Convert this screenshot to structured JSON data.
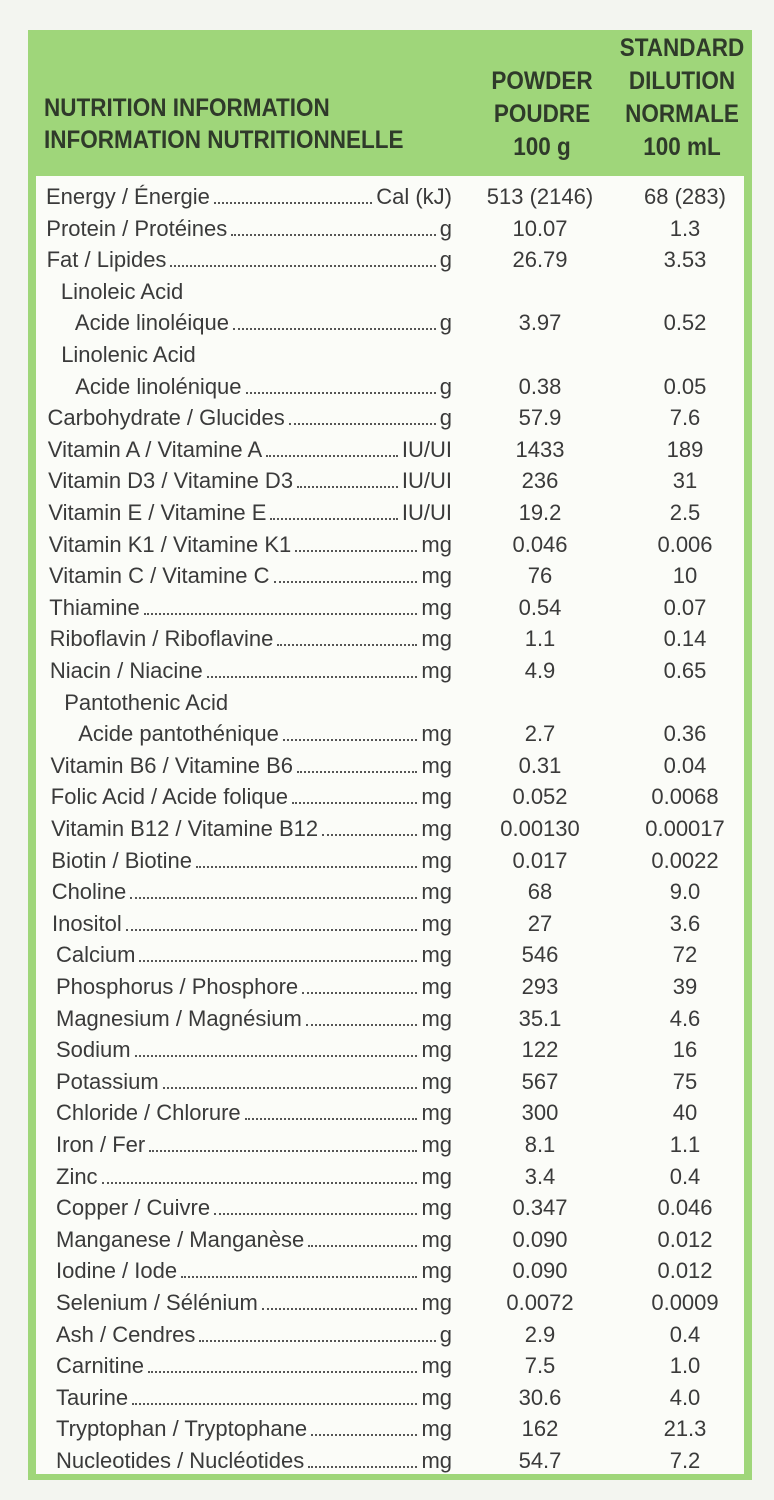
{
  "header": {
    "title": [
      "NUTRITION INFORMATION",
      "INFORMATION NUTRITIONNELLE"
    ],
    "columns": [
      [
        "POWDER",
        "POUDRE",
        "100 g"
      ],
      [
        "STANDARD",
        "DILUTION",
        "NORMALE",
        "100 mL"
      ]
    ]
  },
  "rows": [
    {
      "name": "Energy / Énergie",
      "unit": "Cal (kJ)",
      "powder": "513 (2146)",
      "standard": "68 (283)"
    },
    {
      "name": "Protein / Protéines",
      "unit": "g",
      "powder": "10.07",
      "standard": "1.3"
    },
    {
      "name": "Fat / Lipides",
      "unit": "g",
      "powder": "26.79",
      "standard": "3.53"
    },
    {
      "name": "Linoleic Acid",
      "subname": "Acide linoléique",
      "unit": "g",
      "powder": "3.97",
      "standard": "0.52"
    },
    {
      "name": "Linolenic Acid",
      "subname": "Acide linolénique",
      "unit": "g",
      "powder": "0.38",
      "standard": "0.05"
    },
    {
      "name": "Carbohydrate / Glucides",
      "unit": "g",
      "powder": "57.9",
      "standard": "7.6"
    },
    {
      "name": "Vitamin A / Vitamine A",
      "unit": "IU/UI",
      "powder": "1433",
      "standard": "189"
    },
    {
      "name": "Vitamin D3 / Vitamine D3",
      "unit": "IU/UI",
      "powder": "236",
      "standard": "31"
    },
    {
      "name": "Vitamin E / Vitamine E",
      "unit": "IU/UI",
      "powder": "19.2",
      "standard": "2.5"
    },
    {
      "name": "Vitamin K1 / Vitamine K1",
      "unit": "mg",
      "powder": "0.046",
      "standard": "0.006"
    },
    {
      "name": "Vitamin C / Vitamine C",
      "unit": "mg",
      "powder": "76",
      "standard": "10"
    },
    {
      "name": "Thiamine",
      "unit": "mg",
      "powder": "0.54",
      "standard": "0.07"
    },
    {
      "name": "Riboflavin / Riboflavine",
      "unit": "mg",
      "powder": "1.1",
      "standard": "0.14"
    },
    {
      "name": "Niacin / Niacine",
      "unit": "mg",
      "powder": "4.9",
      "standard": "0.65"
    },
    {
      "name": "Pantothenic Acid",
      "subname": "Acide pantothénique",
      "unit": "mg",
      "powder": "2.7",
      "standard": "0.36"
    },
    {
      "name": "Vitamin B6 / Vitamine B6",
      "unit": "mg",
      "powder": "0.31",
      "standard": "0.04"
    },
    {
      "name": "Folic Acid / Acide folique",
      "unit": "mg",
      "powder": "0.052",
      "standard": "0.0068"
    },
    {
      "name": "Vitamin B12 / Vitamine B12",
      "unit": "mg",
      "powder": "0.00130",
      "standard": "0.00017"
    },
    {
      "name": "Biotin / Biotine",
      "unit": "mg",
      "powder": "0.017",
      "standard": "0.0022"
    },
    {
      "name": "Choline",
      "unit": "mg",
      "powder": "68",
      "standard": "9.0"
    },
    {
      "name": "Inositol",
      "unit": "mg",
      "powder": "27",
      "standard": "3.6"
    },
    {
      "name": "Calcium",
      "unit": "mg",
      "powder": "546",
      "standard": "72"
    },
    {
      "name": "Phosphorus / Phosphore",
      "unit": "mg",
      "powder": "293",
      "standard": "39"
    },
    {
      "name": "Magnesium / Magnésium",
      "unit": "mg",
      "powder": "35.1",
      "standard": "4.6"
    },
    {
      "name": "Sodium",
      "unit": "mg",
      "powder": "122",
      "standard": "16"
    },
    {
      "name": "Potassium",
      "unit": "mg",
      "powder": "567",
      "standard": "75"
    },
    {
      "name": "Chloride / Chlorure",
      "unit": "mg",
      "powder": "300",
      "standard": "40"
    },
    {
      "name": "Iron / Fer",
      "unit": "mg",
      "powder": "8.1",
      "standard": "1.1"
    },
    {
      "name": "Zinc",
      "unit": "mg",
      "powder": "3.4",
      "standard": "0.4"
    },
    {
      "name": "Copper / Cuivre",
      "unit": "mg",
      "powder": "0.347",
      "standard": "0.046"
    },
    {
      "name": "Manganese / Manganèse",
      "unit": "mg",
      "powder": "0.090",
      "standard": "0.012"
    },
    {
      "name": "Iodine / Iode",
      "unit": "mg",
      "powder": "0.090",
      "standard": "0.012"
    },
    {
      "name": "Selenium / Sélénium",
      "unit": "mg",
      "powder": "0.0072",
      "standard": "0.0009"
    },
    {
      "name": "Ash / Cendres",
      "unit": "g",
      "powder": "2.9",
      "standard": "0.4"
    },
    {
      "name": "Carnitine",
      "unit": "mg",
      "powder": "7.5",
      "standard": "1.0"
    },
    {
      "name": "Taurine",
      "unit": "mg",
      "powder": "30.6",
      "standard": "4.0"
    },
    {
      "name": "Tryptophan / Tryptophane",
      "unit": "mg",
      "powder": "162",
      "standard": "21.3"
    },
    {
      "name": "Nucleotides / Nucléotides",
      "unit": "mg",
      "powder": "54.7",
      "standard": "7.2"
    }
  ]
}
